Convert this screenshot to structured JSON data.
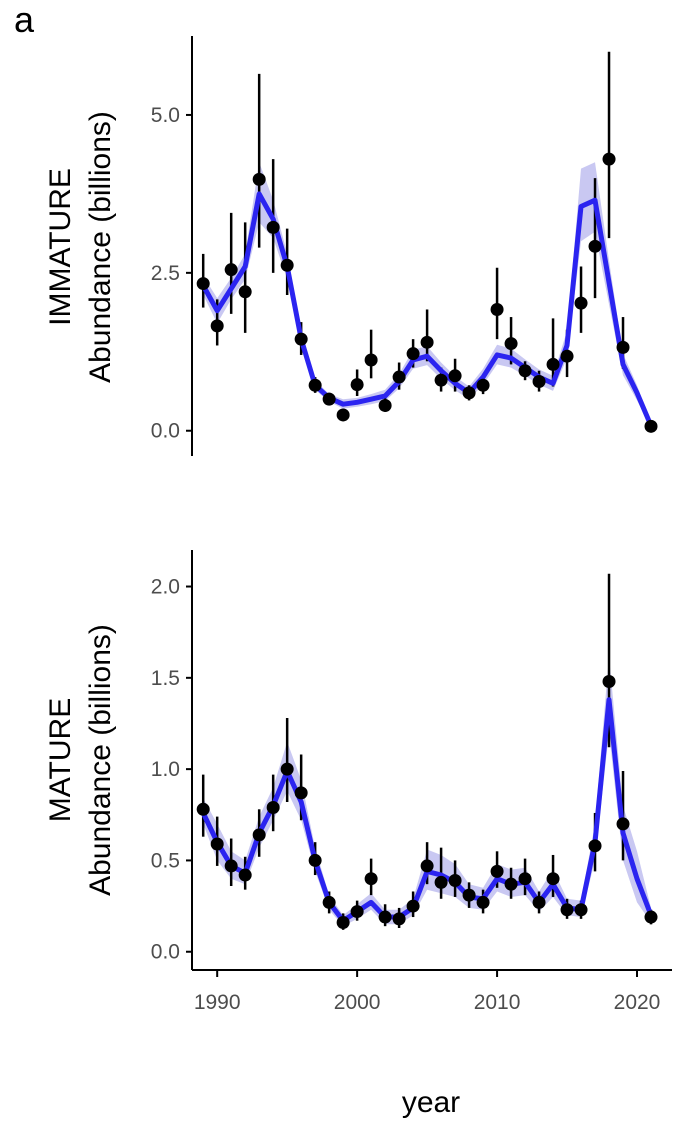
{
  "panel_label": "a",
  "x_axis": {
    "label": "year",
    "ticks": [
      1990,
      2000,
      2010,
      2020
    ],
    "tick_labels": [
      "1990",
      "2000",
      "2010",
      "2020"
    ]
  },
  "colors": {
    "line": "#2b24f0",
    "ribbon": "#c9c8f2",
    "point": "#000000",
    "axis": "#000000",
    "tick_text": "#4d4d4d"
  },
  "chart_data": [
    {
      "type": "line",
      "panel": "top",
      "ylabel_line1": "IMMATURE",
      "ylabel_line2": "Abundance (billions)",
      "xlabel": "year",
      "xlim": [
        1988.2,
        2022.5
      ],
      "ylim": [
        -0.4,
        6.25
      ],
      "yticks": [
        0.0,
        2.5,
        5.0
      ],
      "ytick_labels": [
        "0.0",
        "2.5",
        "5.0"
      ],
      "observed": {
        "x": [
          1989,
          1990,
          1991,
          1992,
          1993,
          1994,
          1995,
          1996,
          1997,
          1998,
          1999,
          2000,
          2001,
          2002,
          2003,
          2004,
          2005,
          2006,
          2007,
          2008,
          2009,
          2010,
          2011,
          2012,
          2013,
          2014,
          2015,
          2016,
          2017,
          2018,
          2019,
          2021
        ],
        "y": [
          2.33,
          1.66,
          2.55,
          2.2,
          3.98,
          3.22,
          2.62,
          1.45,
          0.72,
          0.5,
          0.25,
          0.73,
          1.12,
          0.4,
          0.85,
          1.22,
          1.4,
          0.8,
          0.87,
          0.6,
          0.72,
          1.92,
          1.38,
          0.95,
          0.78,
          1.05,
          1.18,
          2.02,
          2.92,
          4.3,
          1.32,
          0.07
        ],
        "lower": [
          1.95,
          1.35,
          1.85,
          1.55,
          2.9,
          2.5,
          2.15,
          1.2,
          0.6,
          0.4,
          0.18,
          0.55,
          0.83,
          0.3,
          0.65,
          1.0,
          1.1,
          0.62,
          0.62,
          0.48,
          0.58,
          1.45,
          1.05,
          0.8,
          0.62,
          0.7,
          0.85,
          1.55,
          2.1,
          3.05,
          0.98,
          0.05
        ],
        "upper": [
          2.8,
          2.08,
          3.45,
          3.3,
          5.65,
          4.3,
          3.2,
          1.72,
          0.85,
          0.6,
          0.33,
          0.97,
          1.6,
          0.52,
          1.08,
          1.45,
          1.92,
          1.0,
          1.14,
          0.72,
          0.88,
          2.58,
          1.8,
          1.1,
          0.95,
          1.78,
          1.6,
          2.6,
          4.0,
          6.0,
          1.8,
          0.1
        ]
      },
      "fitted": {
        "x": [
          1989,
          1990,
          1991,
          1992,
          1993,
          1994,
          1995,
          1996,
          1997,
          1998,
          1999,
          2000,
          2001,
          2002,
          2003,
          2004,
          2005,
          2006,
          2007,
          2008,
          2009,
          2010,
          2011,
          2012,
          2013,
          2014,
          2015,
          2016,
          2017,
          2018,
          2019,
          2020,
          2021
        ],
        "y": [
          2.3,
          1.9,
          2.25,
          2.6,
          3.75,
          3.35,
          2.6,
          1.45,
          0.72,
          0.52,
          0.42,
          0.45,
          0.5,
          0.55,
          0.78,
          1.12,
          1.18,
          0.95,
          0.75,
          0.6,
          0.85,
          1.2,
          1.15,
          1.0,
          0.85,
          0.75,
          1.35,
          3.55,
          3.65,
          2.35,
          1.05,
          0.6,
          0.08
        ],
        "lower": [
          2.15,
          1.7,
          2.08,
          2.4,
          3.3,
          3.05,
          2.4,
          1.32,
          0.65,
          0.46,
          0.35,
          0.38,
          0.42,
          0.47,
          0.67,
          0.98,
          1.04,
          0.82,
          0.64,
          0.5,
          0.73,
          1.05,
          1.0,
          0.87,
          0.73,
          0.63,
          1.15,
          3.0,
          3.15,
          2.0,
          0.88,
          0.48,
          0.05
        ],
        "upper": [
          2.45,
          2.1,
          2.42,
          2.8,
          4.25,
          3.65,
          2.8,
          1.6,
          0.8,
          0.58,
          0.5,
          0.52,
          0.58,
          0.65,
          0.9,
          1.28,
          1.34,
          1.08,
          0.86,
          0.7,
          0.98,
          1.36,
          1.3,
          1.13,
          0.97,
          0.87,
          1.58,
          4.15,
          4.25,
          2.7,
          1.22,
          0.72,
          0.12
        ]
      }
    },
    {
      "type": "line",
      "panel": "bottom",
      "ylabel_line1": "MATURE",
      "ylabel_line2": "Abundance (billions)",
      "xlabel": "year",
      "xlim": [
        1988.2,
        2022.5
      ],
      "ylim": [
        -0.1,
        2.2
      ],
      "yticks": [
        0.0,
        0.5,
        1.0,
        1.5,
        2.0
      ],
      "ytick_labels": [
        "0.0",
        "0.5",
        "1.0",
        "1.5",
        "2.0"
      ],
      "observed": {
        "x": [
          1989,
          1990,
          1991,
          1992,
          1993,
          1994,
          1995,
          1996,
          1997,
          1998,
          1999,
          2000,
          2001,
          2002,
          2003,
          2004,
          2005,
          2006,
          2007,
          2008,
          2009,
          2010,
          2011,
          2012,
          2013,
          2014,
          2015,
          2016,
          2017,
          2018,
          2019,
          2021
        ],
        "y": [
          0.78,
          0.59,
          0.47,
          0.42,
          0.64,
          0.79,
          1.0,
          0.87,
          0.5,
          0.27,
          0.16,
          0.22,
          0.4,
          0.19,
          0.18,
          0.25,
          0.47,
          0.38,
          0.39,
          0.31,
          0.27,
          0.44,
          0.37,
          0.4,
          0.27,
          0.4,
          0.23,
          0.23,
          0.58,
          1.48,
          0.7,
          0.19
        ],
        "lower": [
          0.63,
          0.47,
          0.36,
          0.34,
          0.52,
          0.66,
          0.82,
          0.72,
          0.42,
          0.21,
          0.12,
          0.17,
          0.31,
          0.14,
          0.13,
          0.19,
          0.37,
          0.29,
          0.3,
          0.24,
          0.21,
          0.35,
          0.29,
          0.31,
          0.21,
          0.3,
          0.18,
          0.18,
          0.44,
          1.12,
          0.5,
          0.15
        ],
        "upper": [
          0.97,
          0.74,
          0.62,
          0.52,
          0.78,
          0.97,
          1.28,
          1.08,
          0.6,
          0.33,
          0.21,
          0.28,
          0.51,
          0.26,
          0.24,
          0.33,
          0.6,
          0.57,
          0.5,
          0.38,
          0.34,
          0.55,
          0.46,
          0.51,
          0.33,
          0.53,
          0.29,
          0.28,
          0.76,
          2.07,
          0.99,
          0.23
        ]
      },
      "fitted": {
        "x": [
          1989,
          1990,
          1991,
          1992,
          1993,
          1994,
          1995,
          1996,
          1997,
          1998,
          1999,
          2000,
          2001,
          2002,
          2003,
          2004,
          2005,
          2006,
          2007,
          2008,
          2009,
          2010,
          2011,
          2012,
          2013,
          2014,
          2015,
          2016,
          2017,
          2018,
          2019,
          2020,
          2021
        ],
        "y": [
          0.76,
          0.6,
          0.47,
          0.43,
          0.65,
          0.8,
          0.99,
          0.82,
          0.5,
          0.27,
          0.17,
          0.22,
          0.27,
          0.19,
          0.19,
          0.24,
          0.44,
          0.42,
          0.38,
          0.3,
          0.29,
          0.4,
          0.37,
          0.38,
          0.27,
          0.37,
          0.24,
          0.23,
          0.6,
          1.38,
          0.65,
          0.4,
          0.2
        ],
        "lower": [
          0.7,
          0.5,
          0.4,
          0.37,
          0.57,
          0.72,
          0.88,
          0.72,
          0.44,
          0.23,
          0.14,
          0.18,
          0.23,
          0.15,
          0.15,
          0.2,
          0.34,
          0.32,
          0.3,
          0.24,
          0.23,
          0.33,
          0.3,
          0.31,
          0.22,
          0.3,
          0.2,
          0.19,
          0.5,
          1.2,
          0.5,
          0.27,
          0.16
        ],
        "upper": [
          0.84,
          0.7,
          0.55,
          0.5,
          0.74,
          0.9,
          1.15,
          0.94,
          0.57,
          0.31,
          0.2,
          0.26,
          0.32,
          0.23,
          0.23,
          0.29,
          0.56,
          0.53,
          0.48,
          0.37,
          0.35,
          0.48,
          0.45,
          0.46,
          0.33,
          0.45,
          0.29,
          0.28,
          0.7,
          1.62,
          0.8,
          0.55,
          0.24
        ]
      }
    }
  ]
}
